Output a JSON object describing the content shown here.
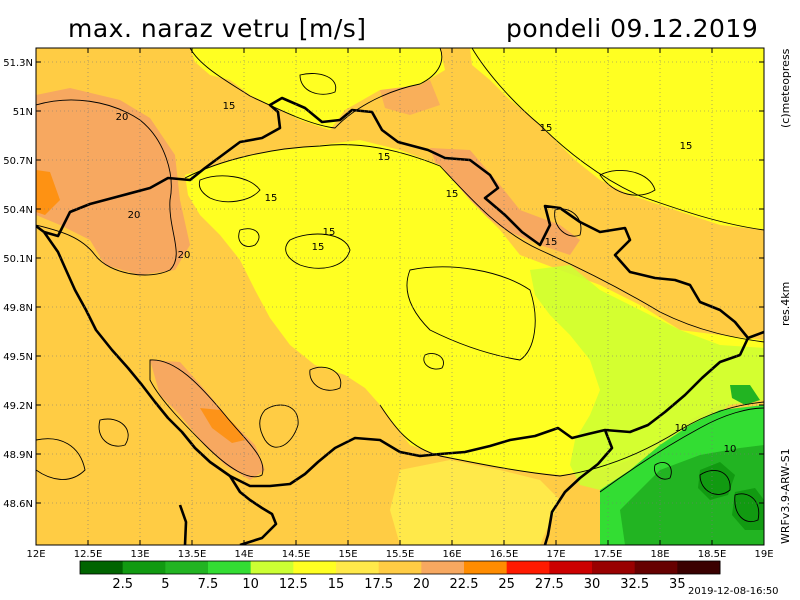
{
  "title": {
    "left": "max. naraz vetru [m/s]",
    "right": "pondeli 09.12.2019"
  },
  "side_labels": {
    "copyright": "(c)meteopress",
    "resolution": "res.4km",
    "model": "WRFv3.9-ARW-S1"
  },
  "timestamp": "2019-12-08-16:50",
  "map": {
    "lat_ticks": [
      "51.3N",
      "51N",
      "50.7N",
      "50.4N",
      "50.1N",
      "49.8N",
      "49.5N",
      "49.2N",
      "48.9N",
      "48.6N"
    ],
    "lon_ticks": [
      "12E",
      "12.5E",
      "13E",
      "13.5E",
      "14E",
      "14.5E",
      "15E",
      "15.5E",
      "16E",
      "16.5E",
      "17E",
      "17.5E",
      "18E",
      "18.5E",
      "19E"
    ],
    "contour_labels": [
      "20",
      "20",
      "20",
      "15",
      "15",
      "15",
      "15",
      "15",
      "15",
      "15",
      "15",
      "15",
      "10",
      "10"
    ]
  },
  "legend": {
    "levels": [
      "2.5",
      "5",
      "7.5",
      "10",
      "12.5",
      "15",
      "17.5",
      "20",
      "22.5",
      "25",
      "27.5",
      "30",
      "32.5",
      "35"
    ],
    "colors": [
      "#006400",
      "#119a11",
      "#22b422",
      "#33dd33",
      "#ccff33",
      "#ffff22",
      "#ffe94a",
      "#ffcc44",
      "#f7a860",
      "#ff8c00",
      "#ff1a00",
      "#cc0000",
      "#990000",
      "#660000",
      "#3a0000"
    ]
  }
}
